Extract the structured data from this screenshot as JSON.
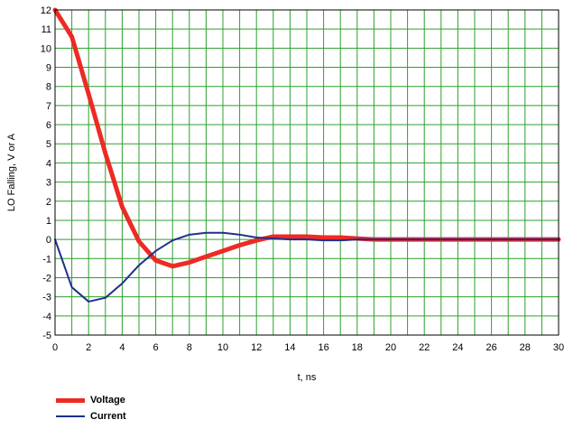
{
  "chart_data": {
    "type": "line",
    "title": "",
    "xlabel": "t, ns",
    "ylabel": "LO Falling, V or A",
    "xlim": [
      0,
      30
    ],
    "ylim": [
      -5,
      12
    ],
    "xticks": [
      0,
      2,
      4,
      6,
      8,
      10,
      12,
      14,
      16,
      18,
      20,
      22,
      24,
      26,
      28,
      30
    ],
    "yticks": [
      -5,
      -4,
      -3,
      -2,
      -1,
      0,
      1,
      2,
      3,
      4,
      5,
      6,
      7,
      8,
      9,
      10,
      11,
      12
    ],
    "grid": true,
    "grid_color": "#2ca02c",
    "legend_position": "bottom-left",
    "series": [
      {
        "name": "Voltage",
        "color": "#ee2a24",
        "x": [
          0,
          1,
          2,
          3,
          4,
          5,
          6,
          7,
          8,
          9,
          10,
          11,
          12,
          13,
          14,
          15,
          16,
          17,
          18,
          19,
          20,
          22,
          24,
          26,
          28,
          30
        ],
        "y": [
          12,
          10.6,
          7.6,
          4.5,
          1.7,
          -0.1,
          -1.1,
          -1.4,
          -1.2,
          -0.9,
          -0.6,
          -0.3,
          -0.05,
          0.15,
          0.15,
          0.15,
          0.1,
          0.1,
          0.05,
          0,
          0,
          0,
          0,
          0,
          0,
          0
        ]
      },
      {
        "name": "Current",
        "color": "#1f2f8c",
        "x": [
          0,
          1,
          2,
          3,
          4,
          5,
          6,
          7,
          8,
          9,
          10,
          11,
          12,
          13,
          14,
          15,
          16,
          17,
          18,
          19,
          20,
          22,
          24,
          26,
          28,
          30
        ],
        "y": [
          0,
          -2.5,
          -3.25,
          -3.05,
          -2.3,
          -1.35,
          -0.6,
          -0.05,
          0.25,
          0.35,
          0.35,
          0.25,
          0.1,
          0.05,
          0,
          0,
          -0.05,
          -0.05,
          0,
          0,
          0,
          0,
          0,
          0,
          0,
          0
        ]
      }
    ]
  }
}
